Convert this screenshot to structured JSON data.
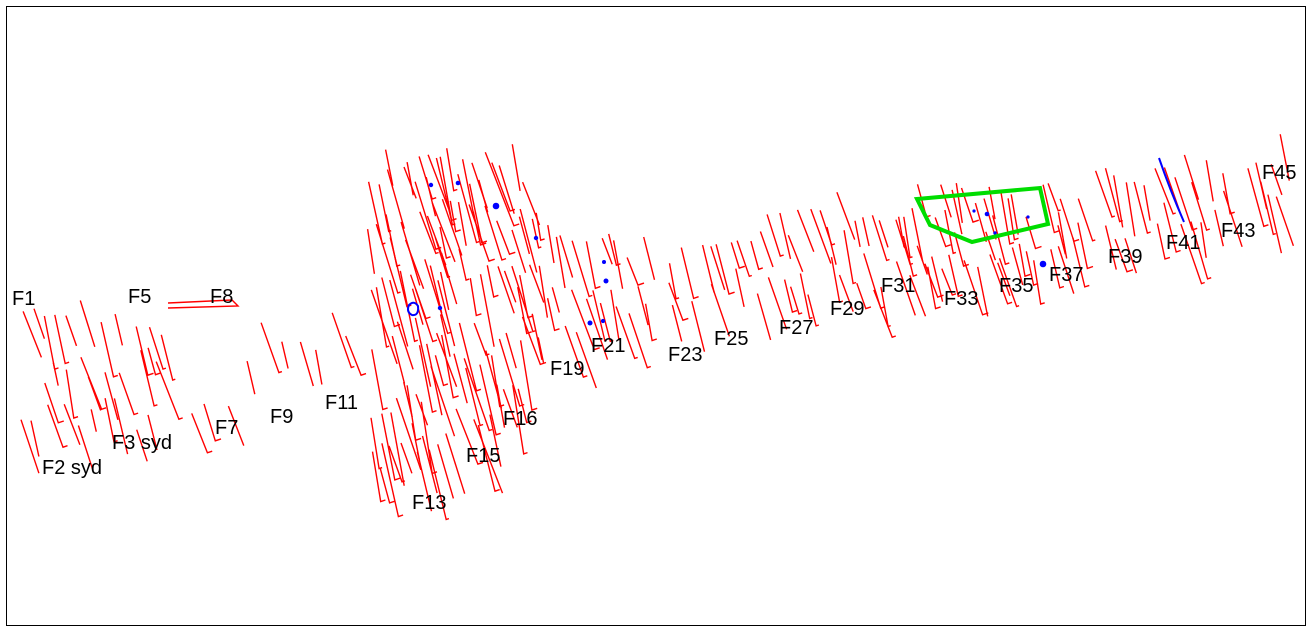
{
  "colors": {
    "track": "#ff0000",
    "feature": "#0000ff",
    "area": "#00dd00",
    "border": "#000000"
  },
  "labels": [
    {
      "id": "F1",
      "text": "F1"
    },
    {
      "id": "F2",
      "text": "F2 syd"
    },
    {
      "id": "F3",
      "text": "F3 syd"
    },
    {
      "id": "F5",
      "text": "F5"
    },
    {
      "id": "F7",
      "text": "F7"
    },
    {
      "id": "F8",
      "text": "F8"
    },
    {
      "id": "F9",
      "text": "F9"
    },
    {
      "id": "F11",
      "text": "F11"
    },
    {
      "id": "F13",
      "text": "F13"
    },
    {
      "id": "F15",
      "text": "F15"
    },
    {
      "id": "F16",
      "text": "F16"
    },
    {
      "id": "F19",
      "text": "F19"
    },
    {
      "id": "F21",
      "text": "F21"
    },
    {
      "id": "F23",
      "text": "F23"
    },
    {
      "id": "F25",
      "text": "F25"
    },
    {
      "id": "F27",
      "text": "F27"
    },
    {
      "id": "F29",
      "text": "F29"
    },
    {
      "id": "F31",
      "text": "F31"
    },
    {
      "id": "F33",
      "text": "F33"
    },
    {
      "id": "F35",
      "text": "F35"
    },
    {
      "id": "F37",
      "text": "F37"
    },
    {
      "id": "F39",
      "text": "F39"
    },
    {
      "id": "F41",
      "text": "F41"
    },
    {
      "id": "F43",
      "text": "F43"
    },
    {
      "id": "F45",
      "text": "F45"
    }
  ]
}
